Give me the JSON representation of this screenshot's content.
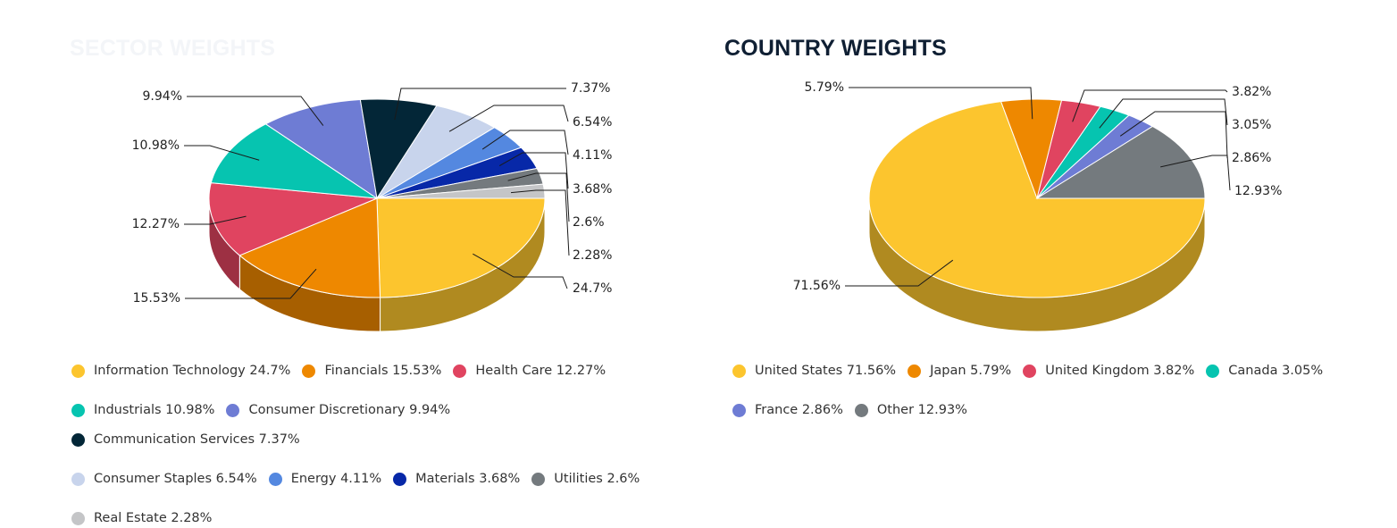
{
  "chart_data": [
    {
      "type": "pie",
      "title": "SECTOR WEIGHTS",
      "unit": "%",
      "categories": [
        "Information Technology",
        "Financials",
        "Health Care",
        "Industrials",
        "Consumer Discretionary",
        "Communication Services",
        "Consumer Staples",
        "Energy",
        "Materials",
        "Utilities",
        "Real Estate"
      ],
      "values": [
        24.7,
        15.53,
        12.27,
        10.98,
        9.94,
        7.37,
        6.54,
        4.11,
        3.68,
        2.6,
        2.28
      ],
      "data_labels": [
        "24.7%",
        "15.53%",
        "12.27%",
        "10.98%",
        "9.94%",
        "7.37%",
        "6.54%",
        "4.11%",
        "3.68%",
        "2.6%",
        "2.28%"
      ],
      "legend_labels": [
        "Information Technology 24.7%",
        "Financials 15.53%",
        "Health Care 12.27%",
        "Industrials 10.98%",
        "Consumer Discretionary 9.94%",
        "Communication Services 7.37%",
        "Consumer Staples 6.54%",
        "Energy 4.11%",
        "Materials 3.68%",
        "Utilities 2.6%",
        "Real Estate 2.28%"
      ],
      "colors": [
        "#fcc52e",
        "#ee8800",
        "#e04460",
        "#06c4b0",
        "#6e7cd4",
        "#032637",
        "#c8d4ec",
        "#5488e0",
        "#0728a8",
        "#747a7e",
        "#c4c5c7"
      ],
      "legend_placement": "bottom"
    },
    {
      "type": "pie",
      "title": "COUNTRY WEIGHTS",
      "unit": "%",
      "categories": [
        "United States",
        "Japan",
        "United Kingdom",
        "Canada",
        "France",
        "Other"
      ],
      "values": [
        71.56,
        5.79,
        3.82,
        3.05,
        2.86,
        12.93
      ],
      "data_labels": [
        "71.56%",
        "5.79%",
        "3.82%",
        "3.05%",
        "2.86%",
        "12.93%"
      ],
      "legend_labels": [
        "United States 71.56%",
        "Japan 5.79%",
        "United Kingdom 3.82%",
        "Canada 3.05%",
        "France 2.86%",
        "Other 12.93%"
      ],
      "colors": [
        "#fcc52e",
        "#ee8800",
        "#e04460",
        "#06c4b0",
        "#6e7cd4",
        "#747a7e"
      ],
      "legend_placement": "bottom"
    }
  ]
}
